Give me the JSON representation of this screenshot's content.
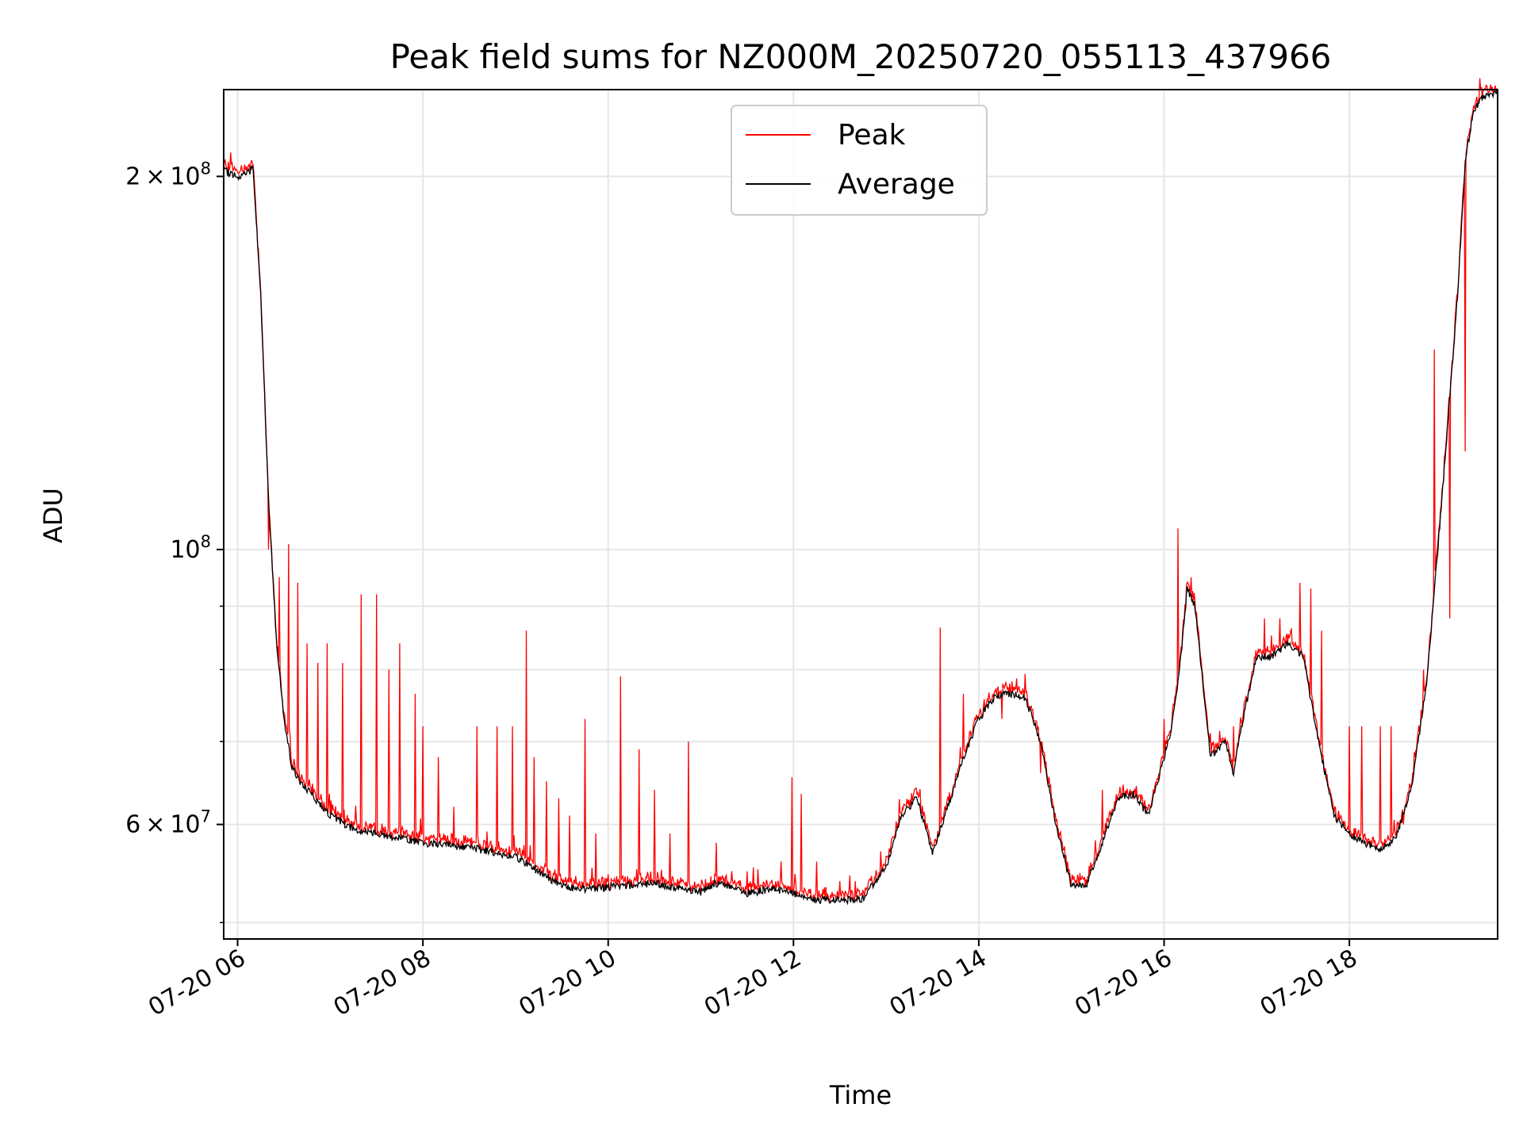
{
  "chart_data": {
    "type": "line",
    "title": "Peak field sums for NZ000M_20250720_055113_437966",
    "xlabel": "Time",
    "ylabel": "ADU",
    "x_tick_labels": [
      "07-20 06",
      "07-20 08",
      "07-20 10",
      "07-20 12",
      "07-20 14",
      "07-20 16",
      "07-20 18"
    ],
    "x_tick_values": [
      "2025-07-20 06:00",
      "2025-07-20 08:00",
      "2025-07-20 10:00",
      "2025-07-20 12:00",
      "2025-07-20 14:00",
      "2025-07-20 16:00",
      "2025-07-20 18:00"
    ],
    "y_scale": "log",
    "y_major_tick_labels": [
      "6×10^7",
      "10^8",
      "2×10^8"
    ],
    "y_major_tick_values": [
      60000000,
      100000000,
      200000000
    ],
    "y_minor_tick_values": [
      50000000,
      70000000,
      80000000,
      90000000
    ],
    "xlim": [
      "2025-07-20 05:51",
      "2025-07-20 19:36"
    ],
    "ylim": [
      48500000,
      235000000
    ],
    "grid": true,
    "legend_position": "top-center",
    "series": [
      {
        "name": "Average",
        "color": "#000000",
        "x": [
          "05:51",
          "06:00",
          "06:05",
          "06:10",
          "06:15",
          "06:20",
          "06:25",
          "06:30",
          "06:35",
          "06:40",
          "06:45",
          "06:50",
          "07:00",
          "07:15",
          "07:30",
          "07:45",
          "08:00",
          "08:30",
          "09:00",
          "09:15",
          "09:30",
          "09:45",
          "10:00",
          "10:15",
          "10:30",
          "10:45",
          "11:00",
          "11:10",
          "11:20",
          "11:30",
          "11:45",
          "12:00",
          "12:15",
          "12:30",
          "12:45",
          "13:00",
          "13:10",
          "13:20",
          "13:30",
          "13:40",
          "13:50",
          "14:00",
          "14:10",
          "14:20",
          "14:30",
          "14:40",
          "14:50",
          "15:00",
          "15:10",
          "15:20",
          "15:30",
          "15:40",
          "15:50",
          "16:00",
          "16:05",
          "16:10",
          "16:15",
          "16:20",
          "16:30",
          "16:40",
          "16:45",
          "16:50",
          "17:00",
          "17:10",
          "17:20",
          "17:30",
          "17:40",
          "17:50",
          "18:00",
          "18:10",
          "18:20",
          "18:30",
          "18:40",
          "18:50",
          "19:00",
          "19:10",
          "19:15",
          "19:20",
          "19:25",
          "19:30",
          "19:36"
        ],
        "y": [
          202000000,
          200000000,
          201000000,
          203000000,
          160000000,
          110000000,
          85000000,
          73000000,
          67000000,
          65000000,
          64000000,
          63000000,
          61000000,
          59500000,
          59000000,
          58500000,
          58000000,
          57500000,
          56500000,
          55000000,
          53500000,
          53200000,
          53400000,
          53600000,
          53800000,
          53300000,
          53000000,
          53800000,
          53500000,
          52800000,
          53200000,
          52800000,
          52200000,
          52100000,
          52300000,
          55500000,
          61000000,
          63000000,
          57000000,
          62000000,
          68000000,
          73000000,
          76000000,
          76500000,
          76000000,
          70000000,
          60000000,
          53500000,
          53800000,
          58000000,
          63000000,
          63500000,
          61000000,
          68000000,
          72000000,
          80000000,
          93000000,
          90000000,
          68000000,
          70000000,
          66000000,
          72000000,
          82000000,
          82000000,
          84000000,
          82000000,
          70000000,
          61000000,
          59000000,
          58000000,
          57200000,
          58500000,
          64000000,
          78000000,
          110000000,
          160000000,
          205000000,
          225000000,
          231000000,
          233000000,
          234000000
        ]
      },
      {
        "name": "Peak",
        "color": "#ff0000",
        "spikes_x": [
          "06:20",
          "06:27",
          "06:33",
          "06:39",
          "06:45",
          "06:52",
          "06:58",
          "07:08",
          "07:20",
          "07:30",
          "07:38",
          "07:45",
          "07:55",
          "08:00",
          "08:10",
          "08:20",
          "08:35",
          "08:48",
          "08:58",
          "09:07",
          "09:12",
          "09:20",
          "09:28",
          "09:35",
          "09:45",
          "09:52",
          "10:08",
          "10:20",
          "10:30",
          "10:40",
          "10:52",
          "11:10",
          "11:20",
          "11:30",
          "11:52",
          "11:59",
          "12:05",
          "12:15",
          "12:30",
          "12:40",
          "13:35",
          "13:50",
          "14:15",
          "14:40",
          "15:20",
          "15:40",
          "16:00",
          "16:09",
          "16:45",
          "17:05",
          "17:15",
          "17:22",
          "17:28",
          "17:35",
          "17:42",
          "18:00",
          "18:08",
          "18:20",
          "18:27",
          "18:35",
          "18:48",
          "18:55",
          "19:05",
          "19:15"
        ],
        "spikes_y": [
          100000000,
          95000000,
          101000000,
          94000000,
          84000000,
          81000000,
          84000000,
          81000000,
          92000000,
          92000000,
          80000000,
          84000000,
          76500000,
          72000000,
          68000000,
          62000000,
          72000000,
          72000000,
          72000000,
          86000000,
          68000000,
          65000000,
          63000000,
          61000000,
          73000000,
          59000000,
          79000000,
          69000000,
          64000000,
          59000000,
          70000000,
          58000000,
          55000000,
          55000000,
          56000000,
          65500000,
          63500000,
          56000000,
          54000000,
          54000000,
          86500000,
          76500000,
          73000000,
          66000000,
          64000000,
          63000000,
          73000000,
          104000000,
          72000000,
          88000000,
          88000000,
          86000000,
          94000000,
          93000000,
          86000000,
          72000000,
          72000000,
          72000000,
          72000000,
          60000000,
          80000000,
          145000000,
          88000000,
          120000000
        ]
      }
    ]
  }
}
